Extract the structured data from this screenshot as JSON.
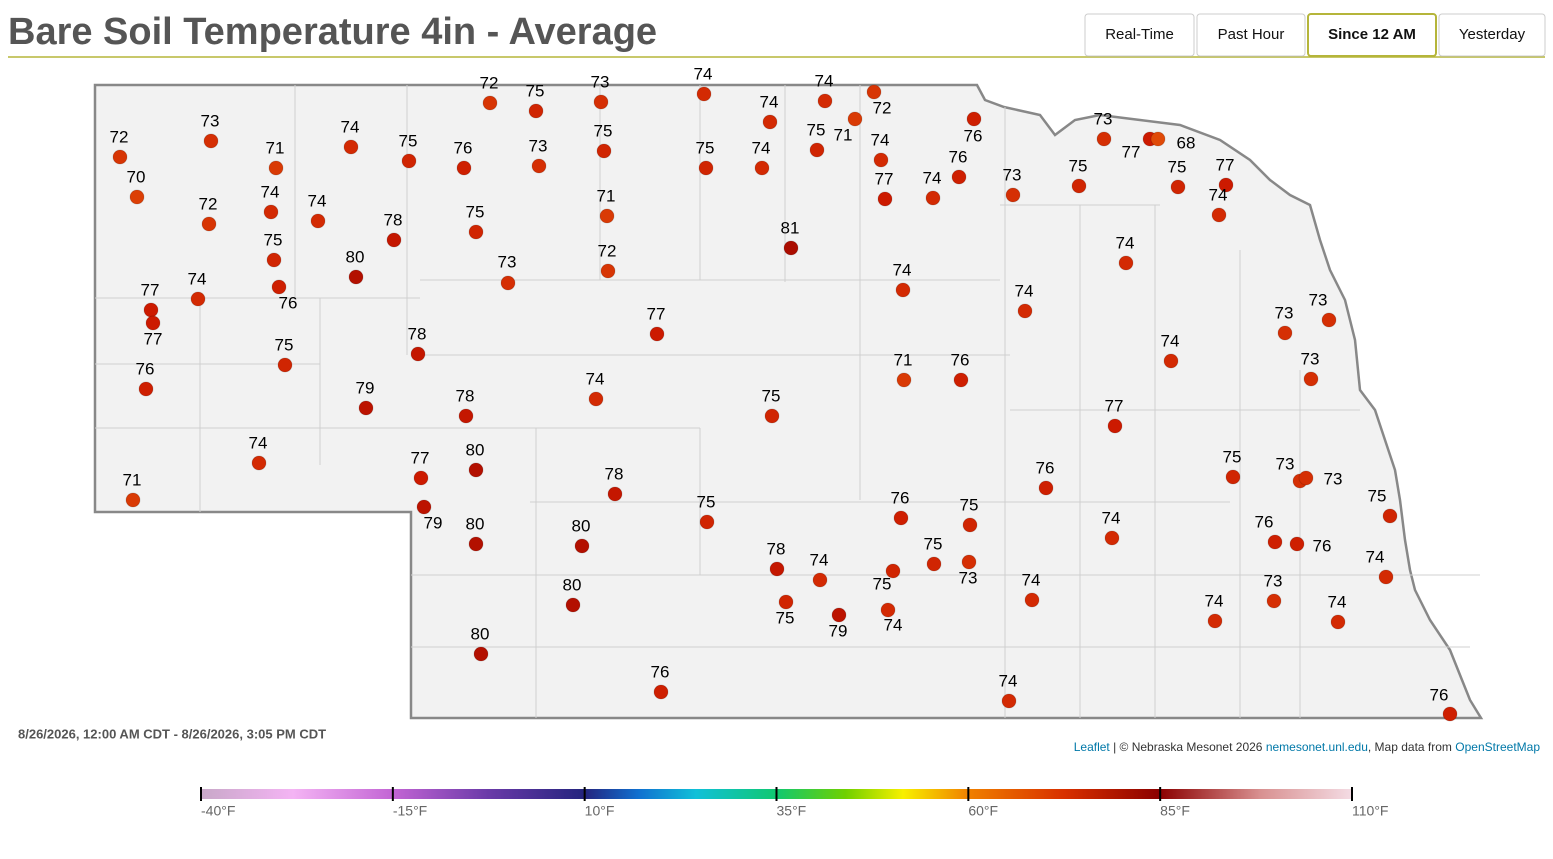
{
  "header": {
    "title": "Bare Soil Temperature 4in - Average",
    "tabs": [
      {
        "label": "Real-Time",
        "active": false
      },
      {
        "label": "Past Hour",
        "active": false
      },
      {
        "label": "Since 12 AM",
        "active": true
      },
      {
        "label": "Yesterday",
        "active": false
      }
    ]
  },
  "map": {
    "time_range": "8/26/2026, 12:00 AM CDT - 8/26/2026, 3:05 PM CDT",
    "stations": [
      72,
      73,
      70,
      71,
      74,
      75,
      76,
      73,
      75,
      72,
      75,
      73,
      74,
      74,
      74,
      72,
      71,
      76,
      75,
      75,
      74,
      74,
      76,
      77,
      74,
      73,
      73,
      77,
      68,
      75,
      75,
      77,
      74,
      74,
      72,
      74,
      78,
      75,
      71,
      81,
      75,
      80,
      72,
      73,
      74,
      74,
      77,
      74,
      76,
      77,
      74,
      77,
      73,
      73,
      78,
      75,
      74,
      76,
      71,
      76,
      73,
      79,
      74,
      78,
      75,
      77,
      74,
      80,
      77,
      78,
      76,
      75,
      73,
      73,
      71,
      79,
      75,
      76,
      75,
      75,
      80,
      80,
      74,
      76,
      76,
      78,
      74,
      75,
      75,
      73,
      74,
      80,
      74,
      73,
      75,
      79,
      74,
      74,
      74,
      80,
      76,
      74,
      76
    ],
    "color_scale": {
      "lim": [
        -40,
        110
      ],
      "ticks": [
        {
          "value": -40,
          "label": "-40°F"
        },
        {
          "value": -15,
          "label": "-15°F"
        },
        {
          "value": 10,
          "label": "10°F"
        },
        {
          "value": 35,
          "label": "35°F"
        },
        {
          "value": 60,
          "label": "60°F"
        },
        {
          "value": 85,
          "label": "85°F"
        },
        {
          "value": 110,
          "label": "110°F"
        }
      ]
    }
  },
  "attribution": {
    "leaflet": "Leaflet",
    "text": "| © Nebraska Mesonet 2026",
    "link": "nemesonet.unl.edu",
    "text2": ", Map data from",
    "osm": "OpenStreetMap"
  }
}
